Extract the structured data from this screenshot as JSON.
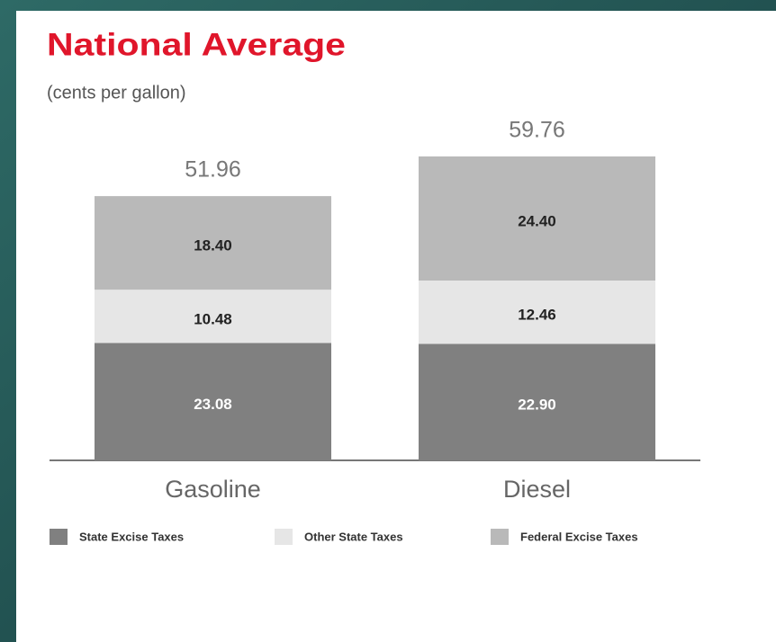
{
  "chart_data": {
    "type": "stacked_bar",
    "title": "National Average",
    "subtitle": "(cents per gallon)",
    "categories": [
      "Gasoline",
      "Diesel"
    ],
    "series": [
      {
        "name": "State Excise Taxes",
        "color": "#808080",
        "label_color": "#ffffff",
        "values": [
          23.08,
          22.9
        ],
        "value_labels": [
          "23.08",
          "22.90"
        ]
      },
      {
        "name": "Other State Taxes",
        "color": "#e6e6e6",
        "label_color": "#222222",
        "values": [
          10.48,
          12.46
        ]
      },
      {
        "name": "Federal Excise Taxes",
        "color": "#b9b9b9",
        "label_color": "#222222",
        "values": [
          18.4,
          24.4
        ],
        "value_labels": [
          "18.40",
          "24.40"
        ]
      }
    ],
    "totals": [
      51.96,
      59.76
    ],
    "legend": "bottom"
  }
}
